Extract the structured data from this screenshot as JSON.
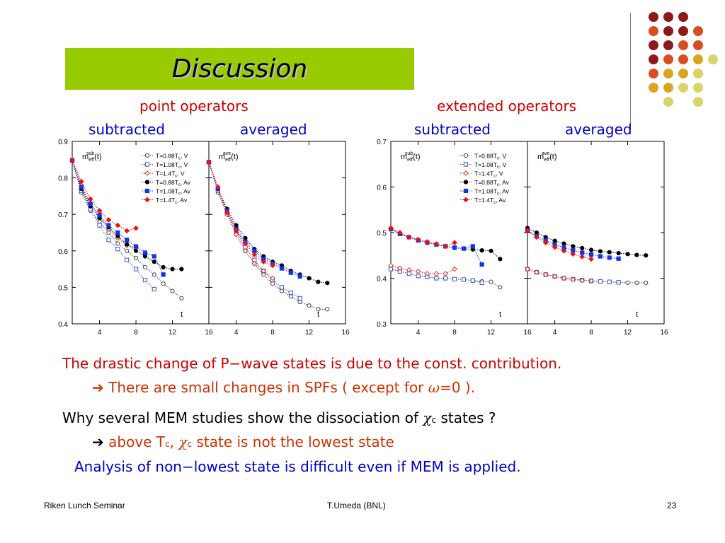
{
  "title": "Discussion",
  "headers": {
    "point_operators": "point operators",
    "extended_operators": "extended operators",
    "subtracted_left": "subtracted",
    "averaged_left": "averaged",
    "subtracted_right": "subtracted",
    "averaged_right": "averaged"
  },
  "colors": {
    "title_bg": "#99cc00",
    "header_red": "#cc0000",
    "header_blue": "#0000cc",
    "line2": "#cc3300",
    "decor": [
      "#8b1a1a",
      "#d94e1f",
      "#d9a520",
      "#d8d46a"
    ]
  },
  "body": {
    "line1": "The drastic change of P−wave states is due to the const. contribution.",
    "line2_arrow": "➔",
    "line2_a": "There are small changes in SPFs ( except for",
    "line2_omega": "ω",
    "line2_b": "=0 ).",
    "line3_a": "Why several MEM studies show the dissociation of",
    "line3_chi": "χ",
    "line3_sub": "c",
    "line3_b": "states ?",
    "line4_arrow": "➔",
    "line4_a": "above T",
    "line4_tsub": "c",
    "line4_comma": ",",
    "line4_chi": "χ",
    "line4_sub": "c",
    "line4_b": "state is not the lowest state",
    "line5": "Analysis of non−lowest state is difficult even if MEM is applied."
  },
  "footer": {
    "left": "Riken Lunch Seminar",
    "center": "T.Umeda (BNL)",
    "right": "23"
  },
  "chart_data": [
    {
      "type": "scatter",
      "panels": [
        {
          "label_main": "m",
          "label_sub": "eff",
          "label_sup": "sub",
          "label_arg": "(t)",
          "xlabel": "t",
          "xticks": [
            "4",
            "8",
            "12",
            "16"
          ],
          "series": [
            {
              "name": "T=0.88T",
              "suffix": "c",
              "kind": ", V",
              "x": [
                1,
                2,
                3,
                4,
                5,
                6,
                7,
                8,
                9,
                10,
                11,
                12,
                13
              ],
              "y": [
                0.848,
                0.76,
                0.71,
                0.68,
                0.65,
                0.62,
                0.6,
                0.58,
                0.555,
                0.535,
                0.51,
                0.49,
                0.47
              ]
            },
            {
              "name": "T=1.08T",
              "suffix": "c",
              "kind": ", V",
              "x": [
                1,
                2,
                3,
                4,
                5,
                6,
                7,
                8,
                9,
                10
              ],
              "y": [
                0.848,
                0.765,
                0.715,
                0.67,
                0.63,
                0.605,
                0.575,
                0.55,
                0.52,
                0.495
              ]
            },
            {
              "name": "T=1.4T",
              "suffix": "c",
              "kind": ", V",
              "x": [
                1,
                2,
                3,
                4,
                5,
                6,
                7,
                8
              ],
              "y": [
                0.848,
                0.78,
                0.73,
                0.695,
                0.66,
                0.635,
                0.615,
                0.61
              ]
            },
            {
              "name": "T=0.88T",
              "suffix": "c",
              "kind": ", Av",
              "x": [
                1,
                2,
                3,
                4,
                5,
                6,
                7,
                8,
                9,
                10,
                11,
                12,
                13
              ],
              "y": [
                0.848,
                0.77,
                0.722,
                0.69,
                0.665,
                0.64,
                0.618,
                0.6,
                0.585,
                0.57,
                0.555,
                0.55,
                0.55
              ]
            },
            {
              "name": "T=1.08T",
              "suffix": "c",
              "kind": ", Av",
              "x": [
                1,
                2,
                3,
                4,
                5,
                6,
                7,
                8,
                9,
                10,
                11
              ],
              "y": [
                0.848,
                0.775,
                0.728,
                0.698,
                0.67,
                0.65,
                0.63,
                0.612,
                0.595,
                0.585,
                0.535
              ]
            },
            {
              "name": "T=1.4T",
              "suffix": "c",
              "kind": ", Av",
              "x": [
                1,
                2,
                3,
                4,
                5,
                6,
                7,
                8
              ],
              "y": [
                0.848,
                0.79,
                0.742,
                0.71,
                0.685,
                0.67,
                0.655,
                0.662
              ]
            }
          ]
        },
        {
          "label_main": "m",
          "label_sub": "eff",
          "label_sup": "ave",
          "label_arg": "(t)",
          "xlabel": "t",
          "xticks": [
            "4",
            "8",
            "12",
            "16"
          ],
          "series": [
            {
              "name": "T=0.88T",
              "suffix": "c",
              "kind": ", V",
              "x": [
                1,
                2,
                3,
                4,
                5,
                6,
                7,
                8,
                9,
                10,
                11,
                12,
                13,
                14
              ],
              "y": [
                0.843,
                0.76,
                0.7,
                0.645,
                0.6,
                0.565,
                0.535,
                0.51,
                0.49,
                0.475,
                0.46,
                0.45,
                0.44,
                0.44
              ]
            },
            {
              "name": "T=1.08T",
              "suffix": "c",
              "kind": ", V",
              "x": [
                1,
                2,
                3,
                4,
                5,
                6,
                7,
                8,
                9,
                10,
                11
              ],
              "y": [
                0.843,
                0.765,
                0.705,
                0.655,
                0.61,
                0.575,
                0.545,
                0.52,
                0.5,
                0.485,
                0.47
              ]
            },
            {
              "name": "T=1.4T",
              "suffix": "c",
              "kind": ", V",
              "x": [
                1,
                2,
                3,
                4,
                5,
                6,
                7,
                8
              ],
              "y": [
                0.843,
                0.77,
                0.7,
                0.645,
                0.6,
                0.565,
                0.545,
                0.525
              ]
            },
            {
              "name": "T=0.88T",
              "suffix": "c",
              "kind": ", Av",
              "x": [
                1,
                2,
                3,
                4,
                5,
                6,
                7,
                8,
                9,
                10,
                11,
                12,
                13,
                14
              ],
              "y": [
                0.843,
                0.77,
                0.715,
                0.67,
                0.635,
                0.605,
                0.585,
                0.57,
                0.56,
                0.545,
                0.535,
                0.525,
                0.515,
                0.512
              ]
            },
            {
              "name": "T=1.08T",
              "suffix": "c",
              "kind": ", Av",
              "x": [
                1,
                2,
                3,
                4,
                5,
                6,
                7,
                8,
                9,
                10,
                11
              ],
              "y": [
                0.843,
                0.77,
                0.71,
                0.66,
                0.625,
                0.6,
                0.578,
                0.565,
                0.552,
                0.54,
                0.53
              ]
            },
            {
              "name": "T=1.4T",
              "suffix": "c",
              "kind": ", Av",
              "x": [
                1,
                2,
                3,
                4,
                5,
                6,
                7,
                8
              ],
              "y": [
                0.843,
                0.775,
                0.705,
                0.655,
                0.62,
                0.59,
                0.57,
                0.56
              ]
            }
          ]
        }
      ],
      "xlim": [
        1,
        16
      ],
      "ylim": [
        0.4,
        0.9
      ],
      "yticks": [
        "0.4",
        "0.5",
        "0.6",
        "0.7",
        "0.8",
        "0.9"
      ]
    },
    {
      "type": "scatter",
      "panels": [
        {
          "label_main": "m",
          "label_sub": "eff",
          "label_sup": "sub",
          "label_arg": "(t)",
          "xlabel": "t",
          "xticks": [
            "4",
            "8",
            "12",
            "16"
          ],
          "series": [
            {
              "name": "T=0.88T",
              "suffix": "c",
              "kind": ", V",
              "x": [
                1,
                2,
                3,
                4,
                5,
                6,
                7,
                8,
                9,
                10,
                11,
                12,
                13
              ],
              "y": [
                0.42,
                0.415,
                0.41,
                0.405,
                0.403,
                0.4,
                0.4,
                0.398,
                0.397,
                0.395,
                0.393,
                0.392,
                0.38
              ]
            },
            {
              "name": "T=1.08T",
              "suffix": "c",
              "kind": ", V",
              "x": [
                1,
                2,
                3,
                4,
                5,
                6,
                7,
                8,
                9,
                10,
                11
              ],
              "y": [
                0.42,
                0.415,
                0.41,
                0.405,
                0.403,
                0.4,
                0.4,
                0.398,
                0.397,
                0.395,
                0.39
              ]
            },
            {
              "name": "T=1.4T",
              "suffix": "c",
              "kind": ", V",
              "x": [
                1,
                2,
                3,
                4,
                5,
                6,
                7,
                8
              ],
              "y": [
                0.428,
                0.422,
                0.418,
                0.415,
                0.41,
                0.41,
                0.41,
                0.42
              ]
            },
            {
              "name": "T=0.88T",
              "suffix": "c",
              "kind": ", Av",
              "x": [
                1,
                2,
                3,
                4,
                5,
                6,
                7,
                8,
                9,
                10,
                11,
                12,
                13
              ],
              "y": [
                0.508,
                0.497,
                0.49,
                0.483,
                0.478,
                0.474,
                0.47,
                0.467,
                0.465,
                0.463,
                0.461,
                0.46,
                0.442
              ]
            },
            {
              "name": "T=1.08T",
              "suffix": "c",
              "kind": ", Av",
              "x": [
                1,
                2,
                3,
                4,
                5,
                6,
                7,
                8,
                9,
                10,
                11
              ],
              "y": [
                0.508,
                0.497,
                0.49,
                0.483,
                0.478,
                0.474,
                0.47,
                0.467,
                0.465,
                0.47,
                0.43
              ]
            },
            {
              "name": "T=1.4T",
              "suffix": "c",
              "kind": ", Av",
              "x": [
                1,
                2,
                3,
                4,
                5,
                6,
                7,
                8
              ],
              "y": [
                0.51,
                0.5,
                0.49,
                0.485,
                0.48,
                0.475,
                0.47,
                0.478
              ]
            }
          ]
        },
        {
          "label_main": "m",
          "label_sub": "eff",
          "label_sup": "ave",
          "label_arg": "(t)",
          "xlabel": "t",
          "xticks": [
            "4",
            "8",
            "12",
            "16"
          ],
          "series": [
            {
              "name": "T=0.88T",
              "suffix": "c",
              "kind": ", V",
              "x": [
                1,
                2,
                3,
                4,
                5,
                6,
                7,
                8,
                9,
                10,
                11,
                12,
                13,
                14
              ],
              "y": [
                0.42,
                0.413,
                0.408,
                0.404,
                0.4,
                0.398,
                0.396,
                0.394,
                0.393,
                0.392,
                0.391,
                0.39,
                0.39,
                0.39
              ]
            },
            {
              "name": "T=1.08T",
              "suffix": "c",
              "kind": ", V",
              "x": [
                1,
                2,
                3,
                4,
                5,
                6,
                7,
                8,
                9,
                10,
                11
              ],
              "y": [
                0.42,
                0.413,
                0.408,
                0.404,
                0.4,
                0.398,
                0.396,
                0.394,
                0.393,
                0.392,
                0.391
              ]
            },
            {
              "name": "T=1.4T",
              "suffix": "c",
              "kind": ", V",
              "x": [
                1,
                2,
                3,
                4,
                5,
                6,
                7,
                8
              ],
              "y": [
                0.42,
                0.413,
                0.408,
                0.404,
                0.4,
                0.397,
                0.395,
                0.394
              ]
            },
            {
              "name": "T=0.88T",
              "suffix": "c",
              "kind": ", Av",
              "x": [
                1,
                2,
                3,
                4,
                5,
                6,
                7,
                8,
                9,
                10,
                11,
                12,
                13,
                14
              ],
              "y": [
                0.51,
                0.5,
                0.49,
                0.482,
                0.476,
                0.47,
                0.466,
                0.462,
                0.459,
                0.457,
                0.455,
                0.453,
                0.451,
                0.45
              ]
            },
            {
              "name": "T=1.08T",
              "suffix": "c",
              "kind": ", Av",
              "x": [
                1,
                2,
                3,
                4,
                5,
                6,
                7,
                8,
                9,
                10,
                11
              ],
              "y": [
                0.505,
                0.492,
                0.483,
                0.474,
                0.467,
                0.461,
                0.456,
                0.452,
                0.448,
                0.445,
                0.443
              ]
            },
            {
              "name": "T=1.4T",
              "suffix": "c",
              "kind": ", Av",
              "x": [
                1,
                2,
                3,
                4,
                5,
                6,
                7,
                8
              ],
              "y": [
                0.505,
                0.49,
                0.478,
                0.468,
                0.46,
                0.453,
                0.447,
                0.442
              ]
            }
          ]
        }
      ],
      "xlim": [
        1,
        16
      ],
      "ylim": [
        0.3,
        0.7
      ],
      "yticks": [
        "0.3",
        "0.4",
        "0.5",
        "0.6",
        "0.7"
      ]
    }
  ]
}
